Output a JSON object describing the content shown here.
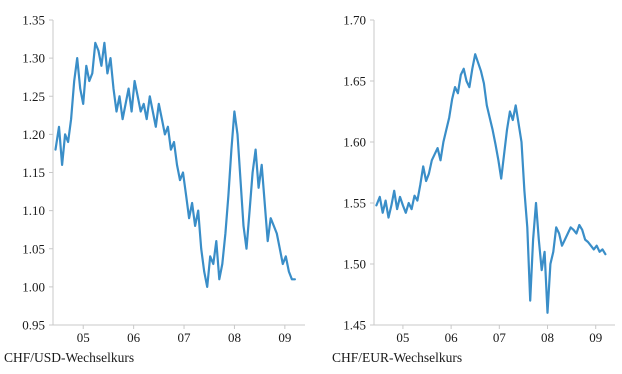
{
  "colors": {
    "line": "#3a8ec8",
    "axis": "#c8c8c8",
    "text": "#1a1a1a"
  },
  "chart_data": [
    {
      "type": "line",
      "title": "",
      "caption": "CHF/USD-Wechselkurs",
      "xlabel": "",
      "ylabel": "",
      "x_tick_labels": [
        "05",
        "06",
        "07",
        "08",
        "09"
      ],
      "x_tick_positions": [
        2005.5,
        2006.5,
        2007.5,
        2008.5,
        2009.5
      ],
      "xlim": [
        2004.9,
        2009.9
      ],
      "ylim": [
        0.95,
        1.35
      ],
      "y_ticks": [
        0.95,
        1.0,
        1.05,
        1.1,
        1.15,
        1.2,
        1.25,
        1.3,
        1.35
      ],
      "y_tick_labels": [
        "0.95",
        "1.00",
        "1.05",
        "1.10",
        "1.15",
        "1.20",
        "1.25",
        "1.30",
        "1.35"
      ],
      "grid": false,
      "series": [
        {
          "x": [
            2004.95,
            2005.02,
            2005.08,
            2005.14,
            2005.2,
            2005.26,
            2005.32,
            2005.38,
            2005.44,
            2005.5,
            2005.56,
            2005.62,
            2005.68,
            2005.74,
            2005.8,
            2005.86,
            2005.92,
            2005.98,
            2006.04,
            2006.1,
            2006.16,
            2006.22,
            2006.28,
            2006.34,
            2006.4,
            2006.46,
            2006.52,
            2006.58,
            2006.64,
            2006.7,
            2006.76,
            2006.82,
            2006.88,
            2006.94,
            2007.0,
            2007.06,
            2007.12,
            2007.18,
            2007.24,
            2007.3,
            2007.36,
            2007.42,
            2007.48,
            2007.54,
            2007.6,
            2007.66,
            2007.72,
            2007.78,
            2007.84,
            2007.9,
            2007.96,
            2008.02,
            2008.08,
            2008.14,
            2008.2,
            2008.26,
            2008.32,
            2008.38,
            2008.44,
            2008.5,
            2008.56,
            2008.62,
            2008.68,
            2008.74,
            2008.8,
            2008.86,
            2008.92,
            2008.98,
            2009.04,
            2009.1,
            2009.16,
            2009.22,
            2009.28,
            2009.34,
            2009.4,
            2009.46,
            2009.52,
            2009.58,
            2009.64,
            2009.7
          ],
          "y": [
            1.18,
            1.21,
            1.16,
            1.2,
            1.19,
            1.22,
            1.27,
            1.3,
            1.26,
            1.24,
            1.29,
            1.27,
            1.28,
            1.32,
            1.31,
            1.29,
            1.32,
            1.28,
            1.3,
            1.26,
            1.23,
            1.25,
            1.22,
            1.24,
            1.26,
            1.23,
            1.27,
            1.25,
            1.23,
            1.24,
            1.22,
            1.25,
            1.23,
            1.21,
            1.24,
            1.22,
            1.2,
            1.21,
            1.18,
            1.19,
            1.16,
            1.14,
            1.15,
            1.12,
            1.09,
            1.11,
            1.08,
            1.1,
            1.05,
            1.02,
            1.0,
            1.04,
            1.03,
            1.06,
            1.01,
            1.03,
            1.07,
            1.12,
            1.18,
            1.23,
            1.2,
            1.14,
            1.08,
            1.05,
            1.1,
            1.15,
            1.18,
            1.13,
            1.16,
            1.11,
            1.06,
            1.09,
            1.08,
            1.07,
            1.05,
            1.03,
            1.04,
            1.02,
            1.01,
            1.01
          ]
        }
      ]
    },
    {
      "type": "line",
      "title": "",
      "caption": "CHF/EUR-Wechselkurs",
      "xlabel": "",
      "ylabel": "",
      "x_tick_labels": [
        "05",
        "06",
        "07",
        "08",
        "09"
      ],
      "x_tick_positions": [
        2005.5,
        2006.5,
        2007.5,
        2008.5,
        2009.5
      ],
      "xlim": [
        2004.9,
        2009.9
      ],
      "ylim": [
        1.45,
        1.7
      ],
      "y_ticks": [
        1.45,
        1.5,
        1.55,
        1.6,
        1.65,
        1.7
      ],
      "y_tick_labels": [
        "1.45",
        "1.50",
        "1.55",
        "1.60",
        "1.65",
        "1.70"
      ],
      "grid": false,
      "series": [
        {
          "x": [
            2004.95,
            2005.02,
            2005.08,
            2005.14,
            2005.2,
            2005.26,
            2005.32,
            2005.38,
            2005.44,
            2005.5,
            2005.56,
            2005.62,
            2005.68,
            2005.74,
            2005.8,
            2005.86,
            2005.92,
            2005.98,
            2006.04,
            2006.1,
            2006.16,
            2006.22,
            2006.28,
            2006.34,
            2006.4,
            2006.46,
            2006.52,
            2006.58,
            2006.64,
            2006.7,
            2006.76,
            2006.82,
            2006.88,
            2006.94,
            2007.0,
            2007.06,
            2007.12,
            2007.18,
            2007.24,
            2007.3,
            2007.36,
            2007.42,
            2007.48,
            2007.54,
            2007.6,
            2007.66,
            2007.72,
            2007.78,
            2007.84,
            2007.9,
            2007.96,
            2008.02,
            2008.08,
            2008.14,
            2008.2,
            2008.26,
            2008.32,
            2008.38,
            2008.44,
            2008.5,
            2008.56,
            2008.62,
            2008.68,
            2008.74,
            2008.8,
            2008.86,
            2008.92,
            2008.98,
            2009.04,
            2009.1,
            2009.16,
            2009.22,
            2009.28,
            2009.34,
            2009.4,
            2009.46,
            2009.52,
            2009.58,
            2009.64,
            2009.7
          ],
          "y": [
            1.548,
            1.555,
            1.542,
            1.552,
            1.538,
            1.548,
            1.56,
            1.545,
            1.555,
            1.548,
            1.542,
            1.55,
            1.545,
            1.556,
            1.552,
            1.565,
            1.58,
            1.568,
            1.574,
            1.585,
            1.59,
            1.595,
            1.585,
            1.6,
            1.61,
            1.62,
            1.635,
            1.645,
            1.64,
            1.655,
            1.66,
            1.65,
            1.645,
            1.66,
            1.672,
            1.665,
            1.658,
            1.648,
            1.63,
            1.62,
            1.61,
            1.598,
            1.585,
            1.57,
            1.59,
            1.61,
            1.625,
            1.618,
            1.63,
            1.615,
            1.6,
            1.56,
            1.53,
            1.47,
            1.52,
            1.55,
            1.52,
            1.495,
            1.51,
            1.46,
            1.5,
            1.51,
            1.53,
            1.525,
            1.515,
            1.52,
            1.525,
            1.53,
            1.528,
            1.525,
            1.532,
            1.528,
            1.52,
            1.518,
            1.515,
            1.512,
            1.515,
            1.51,
            1.512,
            1.508
          ]
        }
      ]
    }
  ]
}
